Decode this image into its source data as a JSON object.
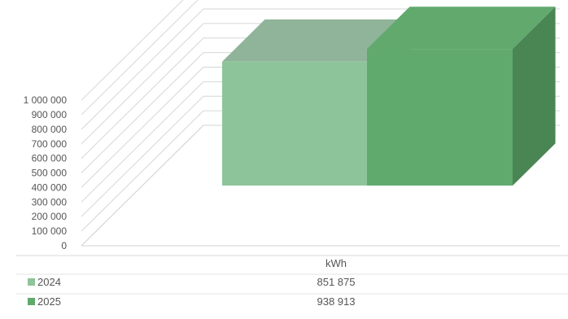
{
  "chart_data": {
    "type": "bar",
    "title": "",
    "xlabel": "",
    "ylabel": "",
    "categories": [
      "kWh"
    ],
    "series": [
      {
        "name": "2024",
        "values": [
          851875
        ],
        "value_label": "851 875",
        "color": "#8dc49a"
      },
      {
        "name": "2025",
        "values": [
          938913
        ],
        "value_label": "938 913",
        "color": "#5faa6c"
      }
    ],
    "ylim": [
      0,
      1000000
    ],
    "y_ticks": [
      0,
      100000,
      200000,
      300000,
      400000,
      500000,
      600000,
      700000,
      800000,
      900000,
      1000000
    ],
    "y_tick_labels": [
      "0",
      "100 000",
      "200 000",
      "300 000",
      "400 000",
      "500 000",
      "600 000",
      "700 000",
      "800 000",
      "900 000",
      "1 000 000"
    ],
    "grid": true,
    "three_d": true,
    "data_table": true
  }
}
